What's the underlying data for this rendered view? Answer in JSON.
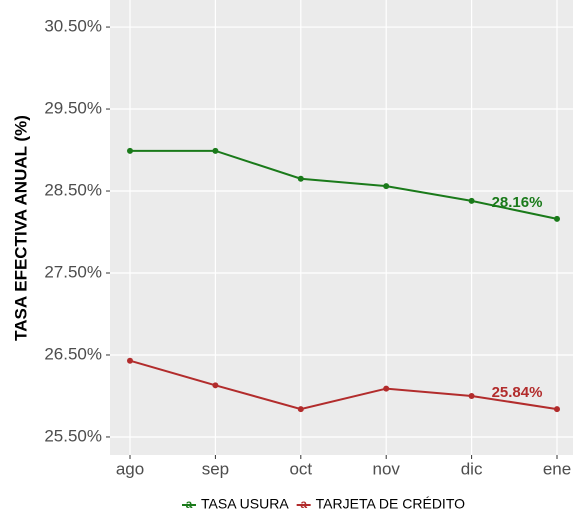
{
  "chart_data": {
    "type": "line",
    "y_label": "TASA EFECTIVA ANUAL (%)",
    "categories": [
      "ago",
      "sep",
      "oct",
      "nov",
      "dic",
      "ene"
    ],
    "series": [
      {
        "name": "TASA USURA",
        "color": "#1a7a1a",
        "values": [
          28.99,
          28.99,
          28.65,
          28.56,
          28.38,
          28.16
        ],
        "value_labels": [
          null,
          null,
          null,
          null,
          null,
          "28.16%"
        ]
      },
      {
        "name": "TARJETA DE CRÉDITO",
        "color": "#b22c2c",
        "values": [
          26.43,
          26.13,
          25.84,
          26.09,
          26.0,
          25.84
        ],
        "value_labels": [
          null,
          null,
          null,
          null,
          null,
          "25.84%"
        ]
      }
    ],
    "ylim": [
      25.28,
      30.83
    ],
    "yticks": [
      {
        "value": 25.5,
        "label": "25.50%"
      },
      {
        "value": 26.5,
        "label": "26.50%"
      },
      {
        "value": 27.5,
        "label": "27.50%"
      },
      {
        "value": 28.5,
        "label": "28.50%"
      },
      {
        "value": 29.5,
        "label": "29.50%"
      },
      {
        "value": 30.5,
        "label": "30.50%"
      }
    ],
    "grid": true,
    "legend": "bottom"
  }
}
